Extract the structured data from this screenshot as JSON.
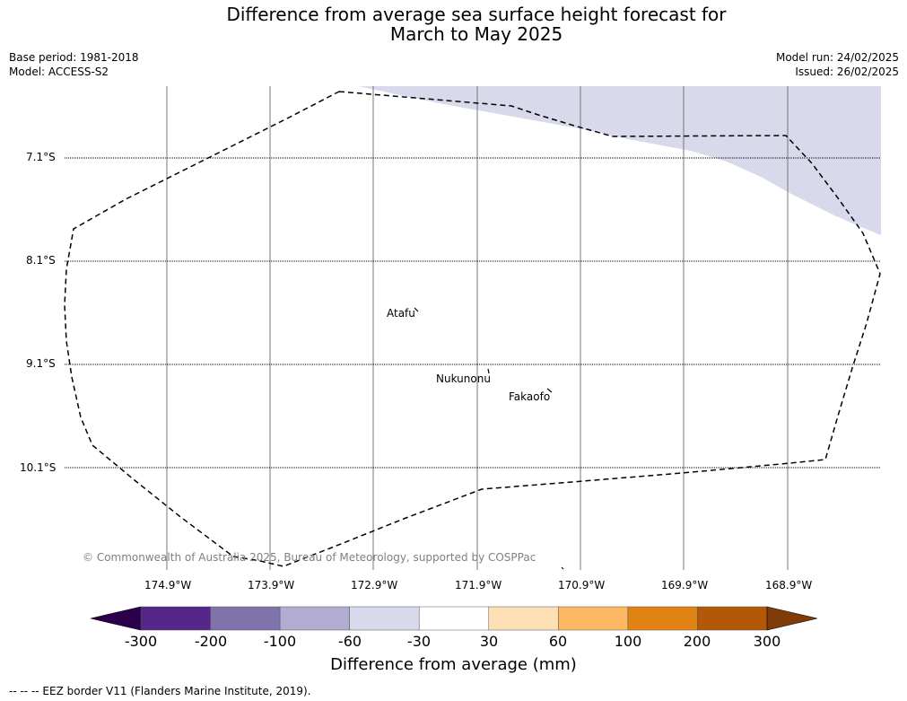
{
  "title_line1": "Difference from average sea surface height forecast for",
  "title_line2": "March to May 2025",
  "meta": {
    "base_period": "Base period: 1981-2018",
    "model": "Model: ACCESS-S2",
    "model_run": "Model run: 24/02/2025",
    "issued": "Issued: 26/02/2025"
  },
  "map": {
    "lat_labels": [
      "7.1°S",
      "8.1°S",
      "9.1°S",
      "10.1°S"
    ],
    "lon_labels": [
      "174.9°W",
      "173.9°W",
      "172.9°W",
      "171.9°W",
      "170.9°W",
      "169.9°W",
      "168.9°W"
    ],
    "places": [
      "Atafu",
      "Nukunonu",
      "Fakaofo"
    ],
    "copyright": "© Commonwealth of Australia 2025, Bureau of Meteorology, supported by COSPPac",
    "anomaly_fill_color": "#d8d9ea",
    "border_style": "dashed"
  },
  "colorbar": {
    "ticks": [
      "-300",
      "-200",
      "-100",
      "-60",
      "-30",
      "30",
      "60",
      "100",
      "200",
      "300"
    ],
    "colors": [
      "#2d004b",
      "#542788",
      "#8073ac",
      "#b2abd2",
      "#d8daeb",
      "#ffffff",
      "#fee0b6",
      "#fdb863",
      "#e08214",
      "#b35806",
      "#7f3b08"
    ],
    "label": "Difference from average (mm)"
  },
  "footer_note": "--  --  -- EEZ border V11 (Flanders Marine Institute, 2019)."
}
